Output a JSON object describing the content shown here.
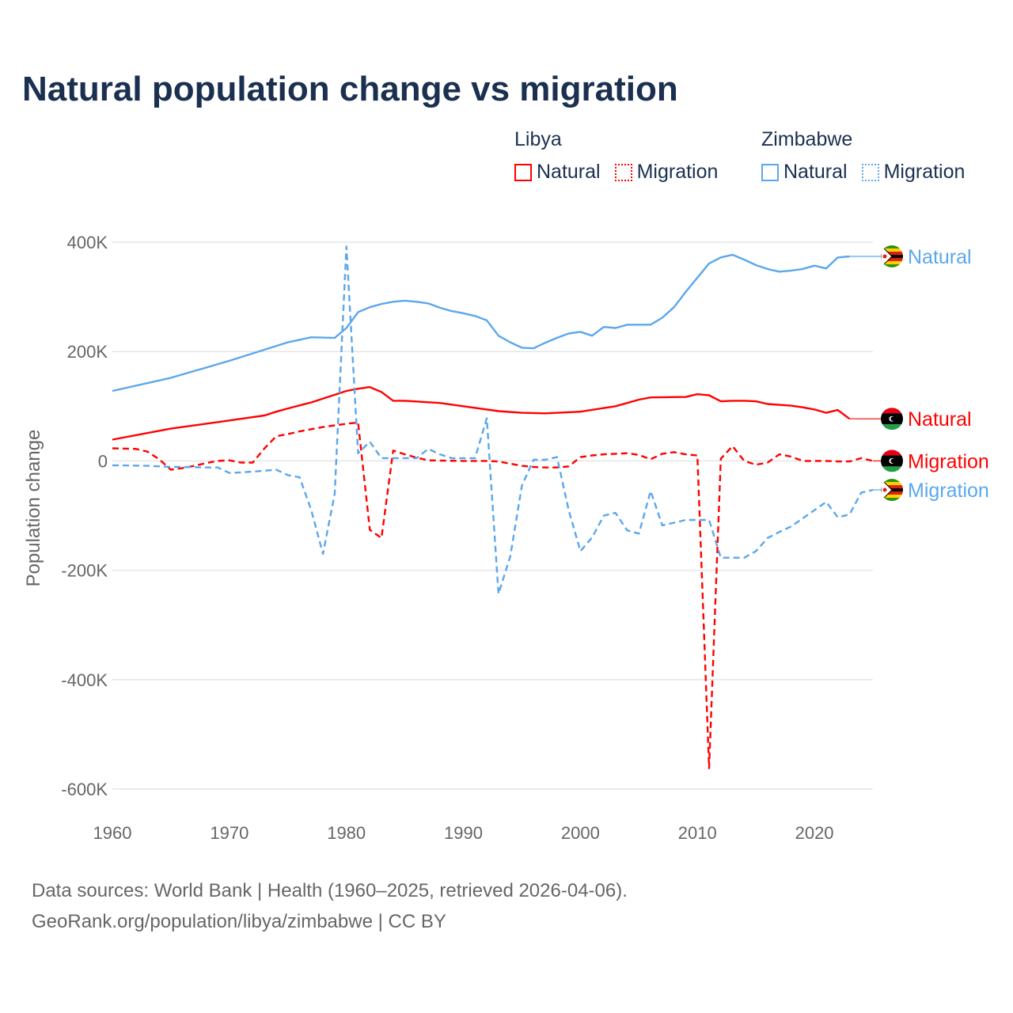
{
  "title": "Natural population change vs migration",
  "legend": {
    "groups": [
      {
        "name": "Libya",
        "items": [
          {
            "label": "Natural",
            "style": "solid",
            "color": "#ff0000"
          },
          {
            "label": "Migration",
            "style": "dotted",
            "color": "#ff0000"
          }
        ]
      },
      {
        "name": "Zimbabwe",
        "items": [
          {
            "label": "Natural",
            "style": "solid",
            "color": "#5ba7ec"
          },
          {
            "label": "Migration",
            "style": "dotted",
            "color": "#5ba7ec"
          }
        ]
      }
    ]
  },
  "footer": {
    "line1": "Data sources: World Bank | Health (1960–2025, retrieved 2026-04-06).",
    "line2": "GeoRank.org/population/libya/zimbabwe | CC BY"
  },
  "chart_data": {
    "type": "line",
    "title": "Natural population change vs migration",
    "xlabel": "",
    "ylabel": "Population change",
    "xlim": [
      1960,
      2025
    ],
    "ylim": [
      -600000,
      400000
    ],
    "xticks": [
      1960,
      1970,
      1980,
      1990,
      2000,
      2010,
      2020
    ],
    "xtick_labels": [
      "1960",
      "1970",
      "1980",
      "1990",
      "2000",
      "2010",
      "2020"
    ],
    "yticks": [
      400000,
      200000,
      0,
      -200000,
      -400000,
      -600000
    ],
    "ytick_labels": [
      "400K",
      "200K",
      "0",
      "-200K",
      "-400K",
      "-600K"
    ],
    "grid": true,
    "legend_position": "top-right",
    "series": [
      {
        "name": "Zimbabwe Natural",
        "end_label": "Natural",
        "color": "#5ba7ec",
        "dash": false,
        "flag": "zimbabwe",
        "x": [
          1960,
          1965,
          1970,
          1975,
          1977,
          1979,
          1980,
          1981,
          1982,
          1983,
          1984,
          1985,
          1986,
          1987,
          1988,
          1989,
          1990,
          1991,
          1992,
          1993,
          1994,
          1995,
          1996,
          1997,
          1998,
          1999,
          2000,
          2001,
          2002,
          2003,
          2004,
          2005,
          2006,
          2007,
          2008,
          2009,
          2010,
          2011,
          2012,
          2013,
          2014,
          2015,
          2016,
          2017,
          2018,
          2019,
          2020,
          2021,
          2022,
          2023
        ],
        "y": [
          128,
          152,
          183,
          217,
          226,
          225,
          243,
          272,
          281,
          287,
          291,
          293,
          291,
          288,
          280,
          274,
          270,
          265,
          257,
          229,
          217,
          207,
          206,
          216,
          225,
          233,
          236,
          229,
          245,
          243,
          249,
          249,
          249,
          262,
          281,
          309,
          335,
          361,
          372,
          377,
          368,
          358,
          351,
          346,
          348,
          351,
          357,
          352,
          372,
          374
        ]
      },
      {
        "name": "Libya Natural",
        "end_label": "Natural",
        "color": "#ff0000",
        "dash": false,
        "flag": "libya",
        "x": [
          1960,
          1965,
          1970,
          1972,
          1973,
          1974,
          1975,
          1977,
          1980,
          1981,
          1982,
          1983,
          1984,
          1985,
          1988,
          1990,
          1993,
          1995,
          1997,
          2000,
          2003,
          2005,
          2006,
          2009,
          2010,
          2011,
          2012,
          2013,
          2014,
          2015,
          2016,
          2018,
          2019,
          2020,
          2021,
          2022,
          2023
        ],
        "y": [
          39,
          59,
          74,
          80,
          83,
          90,
          96,
          107,
          128,
          132,
          135,
          126,
          110,
          110,
          106,
          100,
          91,
          88,
          87,
          90,
          100,
          112,
          116,
          117,
          122,
          120,
          109,
          110,
          110,
          109,
          104,
          101,
          98,
          94,
          88,
          93,
          77
        ]
      },
      {
        "name": "Libya Migration",
        "end_label": "Migration",
        "color": "#ff0000",
        "dash": true,
        "flag": "libya",
        "x": [
          1960,
          1962,
          1963,
          1964,
          1965,
          1966,
          1967,
          1968,
          1969,
          1970,
          1971,
          1972,
          1973,
          1974,
          1975,
          1976,
          1977,
          1978,
          1979,
          1980,
          1981,
          1982,
          1983,
          1984,
          1985,
          1986,
          1987,
          1990,
          1992,
          1993,
          1994,
          1995,
          1996,
          1997,
          1998,
          1999,
          2000,
          2001,
          2002,
          2003,
          2004,
          2005,
          2006,
          2007,
          2008,
          2009,
          2010,
          2011,
          2012,
          2013,
          2014,
          2015,
          2016,
          2017,
          2018,
          2019,
          2020,
          2021,
          2022,
          2023,
          2024,
          2025
        ],
        "y": [
          23,
          22,
          17,
          3,
          -16,
          -13,
          -9,
          -4,
          0,
          1,
          -3,
          -3,
          23,
          45,
          49,
          54,
          58,
          62,
          65,
          68,
          70,
          -126,
          -141,
          19,
          12,
          6,
          1,
          0,
          0,
          -1,
          -5,
          -9,
          -11,
          -12,
          -12,
          -10,
          7,
          10,
          12,
          13,
          14,
          11,
          3,
          13,
          16,
          12,
          10,
          -562,
          4,
          27,
          0,
          -7,
          -3,
          12,
          8,
          0,
          0,
          0,
          -1,
          -1,
          5,
          0
        ]
      },
      {
        "name": "Zimbabwe Migration",
        "end_label": "Migration",
        "color": "#5ba7ec",
        "dash": true,
        "flag": "zimbabwe",
        "x": [
          1960,
          1963,
          1965,
          1966,
          1968,
          1969,
          1970,
          1971,
          1973,
          1974,
          1975,
          1976,
          1977,
          1978,
          1979,
          1980,
          1981,
          1982,
          1983,
          1984,
          1985,
          1986,
          1987,
          1988,
          1989,
          1990,
          1991,
          1992,
          1993,
          1994,
          1995,
          1996,
          1997,
          1998,
          1999,
          2000,
          2001,
          2002,
          2003,
          2004,
          2005,
          2006,
          2007,
          2008,
          2009,
          2010,
          2011,
          2012,
          2013,
          2014,
          2015,
          2016,
          2017,
          2018,
          2019,
          2020,
          2021,
          2022,
          2023,
          2024,
          2025
        ],
        "y": [
          -8,
          -9,
          -11,
          -11,
          -12,
          -12,
          -22,
          -21,
          -18,
          -16,
          -26,
          -30,
          -90,
          -170,
          -60,
          392,
          14,
          35,
          5,
          5,
          5,
          5,
          22,
          12,
          5,
          5,
          5,
          78,
          -243,
          -175,
          -45,
          2,
          2,
          7,
          -90,
          -165,
          -140,
          -100,
          -95,
          -127,
          -133,
          -55,
          -118,
          -113,
          -108,
          -108,
          -108,
          -177,
          -177,
          -177,
          -165,
          -141,
          -130,
          -120,
          -105,
          -90,
          -75,
          -103,
          -98,
          -58,
          -53
        ]
      }
    ],
    "y_units": "thousands"
  }
}
